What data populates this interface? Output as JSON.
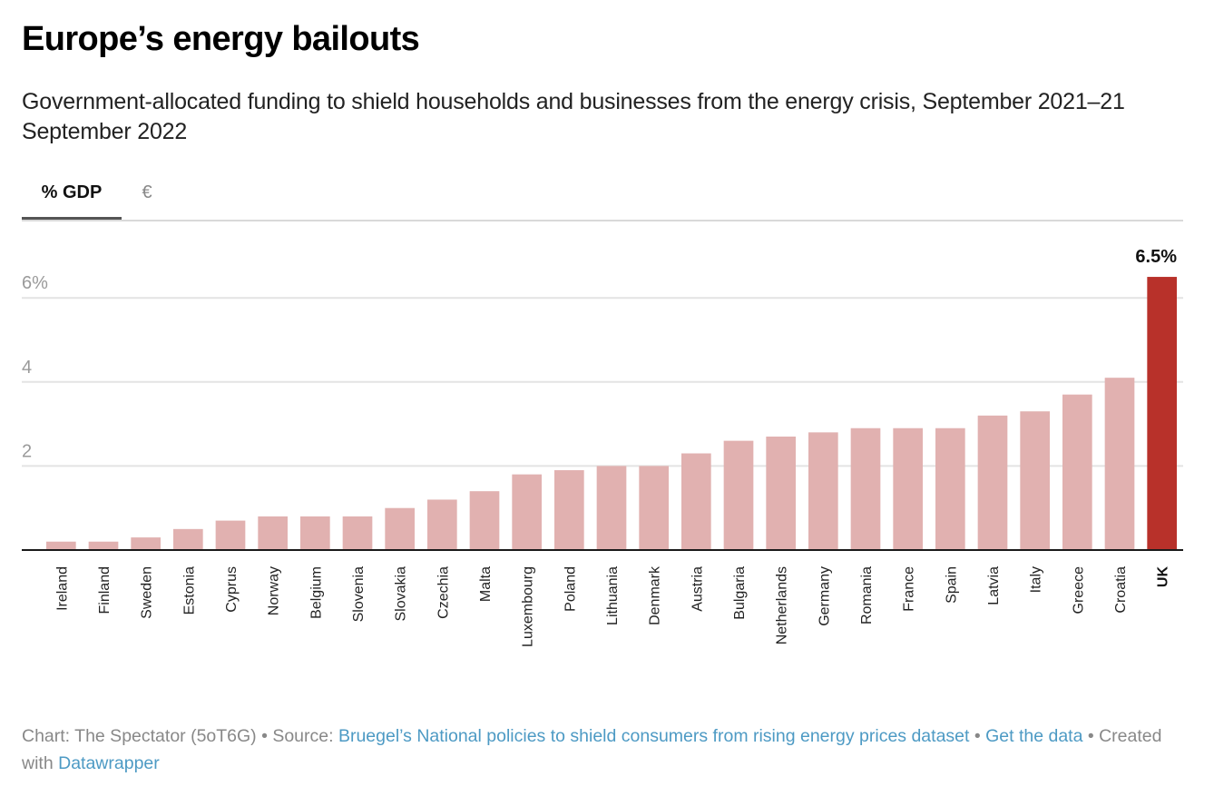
{
  "header": {
    "title": "Europe’s energy bailouts",
    "subtitle": "Government-allocated funding to shield households and businesses from the energy crisis, September 2021–21 September 2022"
  },
  "tabs": [
    {
      "label": "% GDP",
      "active": true
    },
    {
      "label": "€",
      "active": false
    }
  ],
  "colors": {
    "bar": "#e1b1b0",
    "highlight": "#b8312a",
    "grid": "#e4e4e4",
    "baseline": "#1a1a1a",
    "link": "#4d9ac4"
  },
  "chart_data": {
    "type": "bar",
    "title": "Europe’s energy bailouts",
    "subtitle": "Government-allocated funding to shield households and businesses from the energy crisis, September 2021–21 September 2022",
    "xlabel": "",
    "ylabel": "% GDP",
    "ylim": [
      0,
      6.5
    ],
    "yticks": [
      2,
      4,
      6
    ],
    "ytick_labels": [
      "2",
      "4",
      "6%"
    ],
    "grid": true,
    "categories": [
      "Ireland",
      "Finland",
      "Sweden",
      "Estonia",
      "Cyprus",
      "Norway",
      "Belgium",
      "Slovenia",
      "Slovakia",
      "Czechia",
      "Malta",
      "Luxembourg",
      "Poland",
      "Lithuania",
      "Denmark",
      "Austria",
      "Bulgaria",
      "Netherlands",
      "Germany",
      "Romania",
      "France",
      "Spain",
      "Latvia",
      "Italy",
      "Greece",
      "Croatia",
      "UK"
    ],
    "values": [
      0.2,
      0.2,
      0.3,
      0.5,
      0.7,
      0.8,
      0.8,
      0.8,
      1.0,
      1.2,
      1.4,
      1.8,
      1.9,
      2.0,
      2.0,
      2.3,
      2.6,
      2.7,
      2.8,
      2.9,
      2.9,
      2.9,
      3.2,
      3.3,
      3.7,
      4.1,
      6.5
    ],
    "highlight": "UK",
    "annotations": [
      {
        "category": "UK",
        "text": "6.5%"
      }
    ]
  },
  "footer": {
    "chart_prefix": "Chart: The Spectator (5oT6G) • Source: ",
    "source_link": "Bruegel’s National policies to shield consumers from rising energy prices dataset",
    "sep1": " • ",
    "get_data_link": "Get the data",
    "sep2": " • Created with ",
    "datawrapper_link": "Datawrapper"
  }
}
